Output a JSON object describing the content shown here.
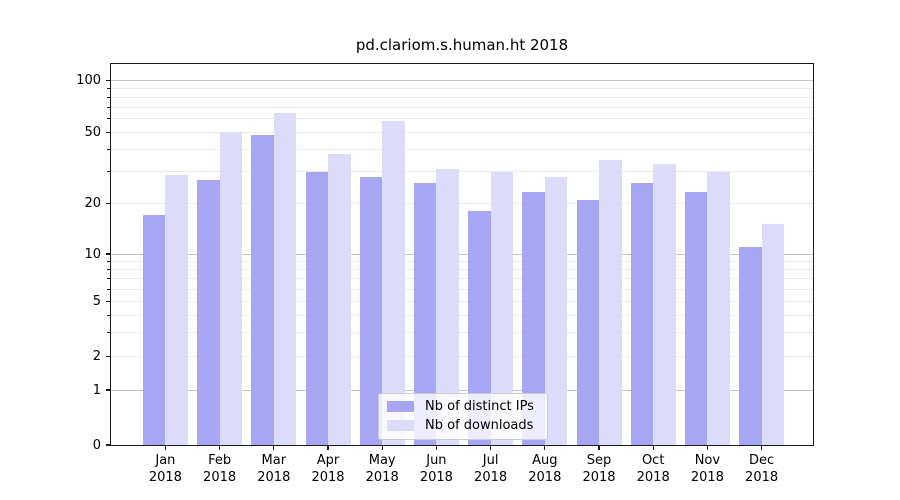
{
  "title": "pd.clariom.s.human.ht 2018",
  "chart_data": {
    "type": "bar",
    "title": "pd.clariom.s.human.ht 2018",
    "categories": [
      "Jan 2018",
      "Feb 2018",
      "Mar 2018",
      "Apr 2018",
      "May 2018",
      "Jun 2018",
      "Jul 2018",
      "Aug 2018",
      "Sep 2018",
      "Oct 2018",
      "Nov 2018",
      "Dec 2018"
    ],
    "series": [
      {
        "name": "Nb of distinct IPs",
        "color": "#a6a6f4",
        "values": [
          17,
          27,
          48,
          30,
          28,
          26,
          18,
          23,
          21,
          26,
          23,
          11
        ]
      },
      {
        "name": "Nb of downloads",
        "color": "#dcdcfa",
        "values": [
          29,
          50,
          65,
          38,
          58,
          31,
          30,
          28,
          35,
          33,
          30,
          15
        ]
      }
    ],
    "xlabel": "",
    "ylabel": "",
    "yscale": "log above 1, linear 0-1",
    "ylim": [
      0,
      127
    ],
    "y_tick_values": [
      100,
      50,
      20,
      10,
      5,
      2,
      1,
      0
    ],
    "y_tick_labels": [
      "100",
      "50",
      "20",
      "10",
      "5",
      "2",
      "1",
      "0"
    ],
    "y_major_gridlines": [
      1,
      10,
      100
    ],
    "y_minor_gridlines": [
      2,
      3,
      4,
      5,
      6,
      7,
      8,
      9,
      20,
      30,
      40,
      50,
      60,
      70,
      80,
      90
    ],
    "grid": true,
    "legend_position": "lower center"
  },
  "colors": {
    "bar_distinct_ips": "#a6a6f4",
    "bar_downloads": "#dcdcfa",
    "grid_major": "#c3c3c3",
    "grid_minor": "#ebebeb",
    "axis": "#1a1a1a",
    "legend_border": "#cccccc"
  }
}
